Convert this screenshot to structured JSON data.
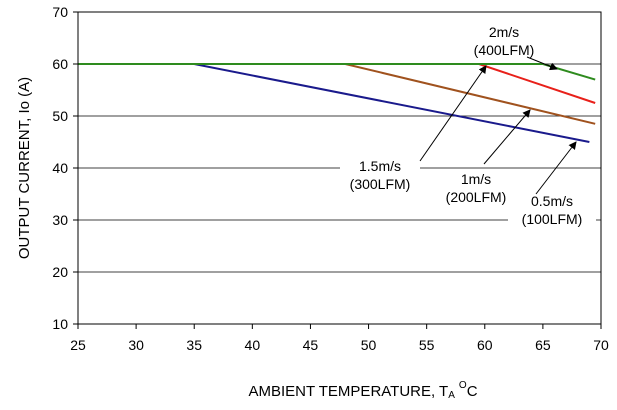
{
  "chart_data": {
    "type": "line",
    "xlabel": "AMBIENT TEMPERATURE, T",
    "xlabel_sub": "A",
    "xlabel_sup": "O",
    "xlabel_unit": "C",
    "ylabel": "OUTPUT CURRENT, Io  (A)",
    "xlim": [
      25,
      70
    ],
    "ylim": [
      10,
      70
    ],
    "x_ticks": [
      25,
      30,
      35,
      40,
      45,
      50,
      55,
      60,
      65,
      70
    ],
    "y_ticks": [
      10,
      20,
      30,
      40,
      50,
      60,
      70
    ],
    "grid": true,
    "series": [
      {
        "color": "#1a1a8c",
        "x": [
          25,
          35,
          69
        ],
        "y": [
          60,
          60,
          45
        ]
      },
      {
        "color": "#a0521e",
        "x": [
          25,
          48,
          69.5
        ],
        "y": [
          60,
          60,
          48.5
        ]
      },
      {
        "color": "#e8201a",
        "x": [
          25,
          59.5,
          69.5
        ],
        "y": [
          60,
          60,
          52.5
        ]
      },
      {
        "color": "#2e8b1e",
        "x": [
          25,
          65,
          69.5
        ],
        "y": [
          60,
          60,
          57
        ]
      }
    ],
    "annotations": [
      {
        "lines": [
          "2m/s",
          "(400LFM)"
        ]
      },
      {
        "lines": [
          "1.5m/s",
          "(300LFM)"
        ]
      },
      {
        "lines": [
          "1m/s",
          "(200LFM)"
        ]
      },
      {
        "lines": [
          "0.5m/s",
          "(100LFM)"
        ]
      }
    ]
  }
}
